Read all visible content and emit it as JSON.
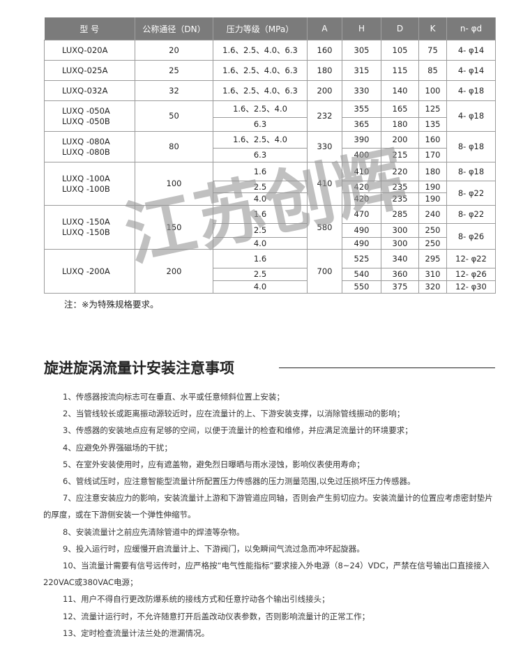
{
  "table": {
    "headers": [
      "型  号",
      "公称通径（DN）",
      "压力等级（MPa）",
      "A",
      "H",
      "D",
      "K",
      "n- φd"
    ],
    "groups": [
      {
        "models": [
          "LUXQ-020A"
        ],
        "dn": "20",
        "a": "160",
        "rows": [
          {
            "pressure": "1.6、2.5、4.0、6.3",
            "h": "305",
            "d": "105",
            "k": "75"
          }
        ],
        "nd": [
          {
            "value": "4- φ14",
            "span": 1
          }
        ]
      },
      {
        "models": [
          "LUXQ-025A"
        ],
        "dn": "25",
        "a": "180",
        "rows": [
          {
            "pressure": "1.6、2.5、4.0、6.3",
            "h": "315",
            "d": "115",
            "k": "85"
          }
        ],
        "nd": [
          {
            "value": "4- φ14",
            "span": 1
          }
        ]
      },
      {
        "models": [
          "LUXQ-032A"
        ],
        "dn": "32",
        "a": "200",
        "rows": [
          {
            "pressure": "1.6、2.5、4.0、6.3",
            "h": "330",
            "d": "140",
            "k": "100"
          }
        ],
        "nd": [
          {
            "value": "4- φ18",
            "span": 1
          }
        ]
      },
      {
        "models": [
          "LUXQ -050A",
          "LUXQ -050B"
        ],
        "dn": "50",
        "a": "232",
        "rows": [
          {
            "pressure": "1.6、2.5、4.0",
            "h": "355",
            "d": "165",
            "k": "125"
          },
          {
            "pressure": "6.3",
            "h": "365",
            "d": "180",
            "k": "135"
          }
        ],
        "nd": [
          {
            "value": "4- φ18",
            "span": 2
          }
        ]
      },
      {
        "models": [
          "LUXQ -080A",
          "LUXQ -080B"
        ],
        "dn": "80",
        "a": "330",
        "rows": [
          {
            "pressure": "1.6、2.5、4.0",
            "h": "390",
            "d": "200",
            "k": "160"
          },
          {
            "pressure": "6.3",
            "h": "400",
            "d": "215",
            "k": "170"
          }
        ],
        "nd": [
          {
            "value": "8- φ18",
            "span": 2
          }
        ]
      },
      {
        "models": [
          "LUXQ -100A",
          "LUXQ -100B"
        ],
        "dn": "100",
        "a": "410",
        "rows": [
          {
            "pressure": "1.6",
            "h": "410",
            "d": "220",
            "k": "180"
          },
          {
            "pressure": "2.5",
            "h": "420",
            "d": "235",
            "k": "190"
          },
          {
            "pressure": "4.0",
            "h": "420",
            "d": "235",
            "k": "190"
          }
        ],
        "nd": [
          {
            "value": "8- φ18",
            "span": 1
          },
          {
            "value": "8- φ22",
            "span": 2
          }
        ]
      },
      {
        "models": [
          "LUXQ -150A",
          "LUXQ -150B"
        ],
        "dn": "150",
        "a": "580",
        "rows": [
          {
            "pressure": "1.6",
            "h": "470",
            "d": "285",
            "k": "240"
          },
          {
            "pressure": "2.5",
            "h": "490",
            "d": "300",
            "k": "250"
          },
          {
            "pressure": "4.0",
            "h": "490",
            "d": "300",
            "k": "250"
          }
        ],
        "nd": [
          {
            "value": "8- φ22",
            "span": 1
          },
          {
            "value": "8- φ26",
            "span": 2
          }
        ]
      },
      {
        "models": [
          "LUXQ -200A"
        ],
        "dn": "200",
        "a": "700",
        "rows": [
          {
            "pressure": "1.6",
            "h": "525",
            "d": "340",
            "k": "295"
          },
          {
            "pressure": "2.5",
            "h": "540",
            "d": "360",
            "k": "310"
          },
          {
            "pressure": "4.0",
            "h": "550",
            "d": "375",
            "k": "320"
          }
        ],
        "nd": [
          {
            "value": "12- φ22",
            "span": 1
          },
          {
            "value": "12- φ26",
            "span": 1
          },
          {
            "value": "12- φ30",
            "span": 1
          }
        ]
      }
    ]
  },
  "watermark": "江苏创辉",
  "note": "注：※为特殊规格要求。",
  "section": {
    "title": "旋进旋涡流量计安装注意事项",
    "items": [
      "1、传感器按流向标志可在垂直、水平或任意倾斜位置上安装；",
      "2、当管线较长或距离振动源较近时，应在流量计的上、下游安装支撑，以消除管线振动的影响；",
      "3、传感器的安装地点应有足够的空间，以便于流量计的检查和维修，并应满足流量计的环境要求；",
      "4、应避免外界强磁场的干扰；",
      "5、在室外安装使用时，应有遮盖物，避免烈日曝晒与雨水浸蚀，影响仪表使用寿命；",
      "6、管线试压时，应注意智能型流量计所配置压力传感器的压力测量范围,以免过压损坏压力传感器。",
      "7、应注意安装应力的影响，安装流量计上游和下游管道应同轴，否则会产生剪切应力。安装流量计的位置应考虑密封垫片的厚度，或在下游侧安装一个弹性伸缩节。",
      "8、安装流量计之前应先清除管道中的焊渣等杂物。",
      "9、投入运行时，应缓慢开启流量计上、下游阀门，以免瞬间气流过急而冲坏起旋器。",
      "10、当流量计需要有信号远传时，应严格按“电气性能指标”要求接入外电源（8~24）VDC，严禁在信号输出口直接接入220VAC或380VAC电源；",
      "11、用户不得自行更改防爆系统的接线方式和任意拧动各个输出引线接头；",
      "12、流量计运行时，不允许随意打开后盖改动仪表参数，否则影响流量计的正常工作；",
      "13、定时检查流量计法兰处的泄漏情况。"
    ]
  }
}
